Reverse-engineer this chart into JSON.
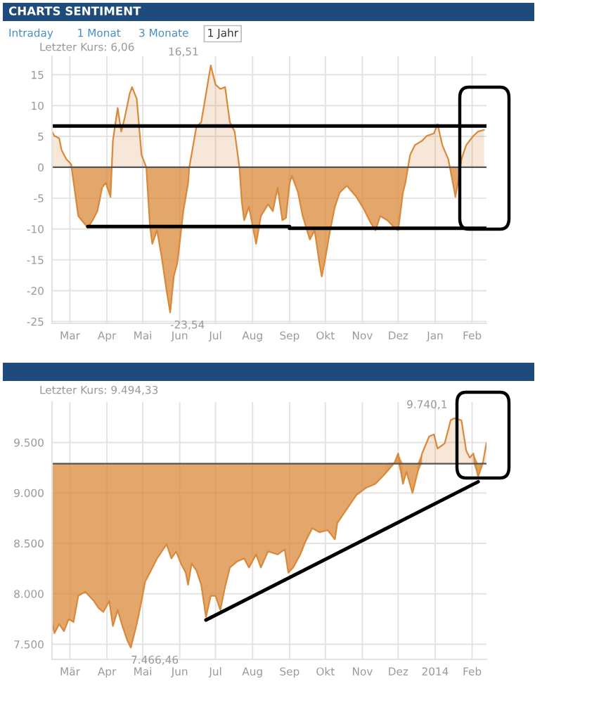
{
  "chart_data": [
    {
      "type": "area",
      "title": "CHARTS SENTIMENT",
      "annotations": [
        "Intraday",
        "1 Monat",
        "3 Monate",
        "1 Jahr",
        "Letzter Kurs: 6,06",
        {
          "text": "16,51",
          "x": "2013-06-27",
          "y": 16.51
        },
        {
          "text": "-23,54",
          "x": "2013-05-24",
          "y": -23.54
        }
      ],
      "series": [
        {
          "color": "#d9893a",
          "x": [
            "2013-02-14",
            "2013-02-16",
            "2013-02-20",
            "2013-02-22",
            "2013-02-26",
            "2013-03-02",
            "2013-03-08",
            "2013-03-16",
            "2013-03-20",
            "2013-03-24",
            "2013-03-28",
            "2013-03-31",
            "2013-04-04",
            "2013-04-06",
            "2013-04-10",
            "2013-04-13",
            "2013-04-16",
            "2013-04-20",
            "2013-04-22",
            "2013-04-26",
            "2013-04-30",
            "2013-05-04",
            "2013-05-07",
            "2013-05-09",
            "2013-05-13",
            "2013-05-17",
            "2013-05-21",
            "2013-05-24",
            "2013-05-27",
            "2013-05-30",
            "2013-06-04",
            "2013-06-08",
            "2013-06-09",
            "2013-06-15",
            "2013-06-19",
            "2013-06-23",
            "2013-06-27",
            "2013-07-01",
            "2013-07-05",
            "2013-07-09",
            "2013-07-13",
            "2013-07-17",
            "2013-07-21",
            "2013-07-23",
            "2013-07-25",
            "2013-07-29",
            "2013-08-04",
            "2013-08-08",
            "2013-08-14",
            "2013-08-18",
            "2013-08-22",
            "2013-08-26",
            "2013-08-29",
            "2013-09-01",
            "2013-09-03",
            "2013-09-08",
            "2013-09-12",
            "2013-09-18",
            "2013-09-22",
            "2013-09-26",
            "2013-09-28",
            "2013-10-01",
            "2013-10-05",
            "2013-10-09",
            "2013-10-13",
            "2013-10-19",
            "2013-10-27",
            "2013-11-02",
            "2013-11-08",
            "2013-11-12",
            "2013-11-16",
            "2013-11-22",
            "2013-11-28",
            "2013-12-01",
            "2013-12-05",
            "2013-12-07",
            "2013-12-11",
            "2013-12-15",
            "2013-12-21",
            "2013-12-25",
            "2013-12-31",
            "2014-01-03",
            "2014-01-07",
            "2014-01-12",
            "2014-01-15",
            "2014-01-18",
            "2014-01-20",
            "2014-01-23",
            "2014-01-27",
            "2014-02-02",
            "2014-02-06",
            "2014-02-11"
          ],
          "values": [
            5.8,
            5.1,
            4.7,
            2.8,
            1.3,
            0.5,
            -7.9,
            -9.8,
            -8.6,
            -7.1,
            -3.3,
            -2.5,
            -4.8,
            4.3,
            9.6,
            5.8,
            8.1,
            11.9,
            13,
            11.1,
            2,
            0,
            -9.4,
            -12.4,
            -10.2,
            -14.7,
            -20,
            -23.54,
            -17.7,
            -15.5,
            -7.1,
            -2.6,
            0,
            6.6,
            7.3,
            11.9,
            16.51,
            13.4,
            12.7,
            13,
            7.3,
            5.8,
            0,
            -5.6,
            -8.6,
            -6.4,
            -12.4,
            -7.9,
            -6,
            -7.1,
            -3.3,
            -8.6,
            -8.2,
            -2.6,
            -1.4,
            -4,
            -7.9,
            -11.7,
            -10.2,
            -15.5,
            -17.7,
            -14.7,
            -10.2,
            -6.4,
            -4.1,
            -3,
            -4.8,
            -6.7,
            -9,
            -10.2,
            -7.9,
            -8.6,
            -9.8,
            -10.2,
            -4.1,
            -2.6,
            2,
            3.6,
            4.3,
            5.1,
            5.5,
            7,
            3.6,
            1.3,
            -1.7,
            -4.8,
            -2.6,
            1.3,
            3.6,
            5.1,
            5.8,
            6.06
          ]
        },
        {
          "type": "line",
          "color": "#000000",
          "x": [
            "2013-02-14",
            "2014-02-13"
          ],
          "values": [
            6.7,
            6.7
          ]
        },
        {
          "type": "line",
          "color": "#000000",
          "x": [
            "2013-03-16",
            "2013-09-01",
            "2013-09-01",
            "2014-02-13"
          ],
          "values": [
            -9.6,
            -9.6,
            -9.9,
            -9.9
          ]
        }
      ],
      "ref_lines": [
        {
          "axis": "y",
          "value": 0,
          "color": "#555555"
        }
      ],
      "xlim": [
        "2013-02-14",
        "2014-02-13"
      ],
      "xticks": [
        {
          "value": "2013-03-01",
          "label": "Mar"
        },
        {
          "value": "2013-04-01",
          "label": "Apr"
        },
        {
          "value": "2013-05-01",
          "label": "Mai"
        },
        {
          "value": "2013-06-01",
          "label": "Jun"
        },
        {
          "value": "2013-07-01",
          "label": "Jul"
        },
        {
          "value": "2013-08-01",
          "label": "Aug"
        },
        {
          "value": "2013-09-01",
          "label": "Sep"
        },
        {
          "value": "2013-10-01",
          "label": "Okt"
        },
        {
          "value": "2013-11-01",
          "label": "Nov"
        },
        {
          "value": "2013-12-01",
          "label": "Dez"
        },
        {
          "value": "2014-01-01",
          "label": "Jan"
        },
        {
          "value": "2014-02-01",
          "label": "Feb"
        }
      ],
      "ylim": [
        -25.3,
        18
      ],
      "yticks": [
        -25,
        -20,
        -15,
        -10,
        -5,
        0,
        5,
        10,
        15
      ],
      "grid": true,
      "legend": false
    },
    {
      "type": "line",
      "annotations": [
        "Letzter Kurs: 9.494,33",
        {
          "text": "9.740,1",
          "x": "2014-01-17",
          "y": 9740
        },
        {
          "text": "7.466,46",
          "x": "2013-04-21",
          "y": 7466.46
        }
      ],
      "series": [
        {
          "color": "#d9893a",
          "x": [
            "2013-02-14",
            "2013-02-16",
            "2013-02-20",
            "2013-02-24",
            "2013-02-28",
            "2013-03-04",
            "2013-03-08",
            "2013-03-14",
            "2013-03-17",
            "2013-03-21",
            "2013-03-25",
            "2013-03-29",
            "2013-04-03",
            "2013-04-06",
            "2013-04-10",
            "2013-04-14",
            "2013-04-18",
            "2013-04-21",
            "2013-04-26",
            "2013-04-30",
            "2013-05-03",
            "2013-05-07",
            "2013-05-13",
            "2013-05-21",
            "2013-05-25",
            "2013-05-29",
            "2013-06-02",
            "2013-06-06",
            "2013-06-08",
            "2013-06-11",
            "2013-06-15",
            "2013-06-19",
            "2013-06-23",
            "2013-06-27",
            "2013-07-01",
            "2013-07-05",
            "2013-07-09",
            "2013-07-13",
            "2013-07-19",
            "2013-07-25",
            "2013-07-29",
            "2013-08-04",
            "2013-08-08",
            "2013-08-14",
            "2013-08-22",
            "2013-08-28",
            "2013-08-31",
            "2013-09-04",
            "2013-09-10",
            "2013-09-14",
            "2013-09-20",
            "2013-09-26",
            "2013-10-03",
            "2013-10-09",
            "2013-10-11",
            "2013-10-19",
            "2013-10-27",
            "2013-11-04",
            "2013-11-12",
            "2013-11-20",
            "2013-11-28",
            "2013-12-01",
            "2013-12-05",
            "2013-12-08",
            "2013-12-13",
            "2013-12-17",
            "2013-12-21",
            "2013-12-27",
            "2013-12-31",
            "2014-01-03",
            "2014-01-09",
            "2014-01-14",
            "2014-01-17",
            "2014-01-23",
            "2014-01-27",
            "2014-01-30",
            "2014-02-02",
            "2014-02-06",
            "2014-02-10",
            "2014-02-13"
          ],
          "values": [
            7720,
            7610,
            7700,
            7630,
            7750,
            7720,
            7980,
            8020,
            7980,
            7930,
            7860,
            7820,
            7930,
            7680,
            7840,
            7680,
            7540,
            7466.46,
            7700,
            7930,
            8120,
            8210,
            8350,
            8490,
            8350,
            8420,
            8300,
            8210,
            8090,
            8300,
            8230,
            8090,
            7770,
            7980,
            7980,
            7840,
            8070,
            8260,
            8320,
            8350,
            8260,
            8390,
            8260,
            8420,
            8390,
            8440,
            8210,
            8260,
            8390,
            8510,
            8650,
            8610,
            8630,
            8540,
            8700,
            8840,
            8980,
            9050,
            9090,
            9190,
            9300,
            9390,
            9090,
            9210,
            9000,
            9190,
            9390,
            9560,
            9580,
            9440,
            9490,
            9720,
            9740,
            9720,
            9420,
            9350,
            9390,
            9160,
            9300,
            9494.33
          ],
          "lower": [
            7720,
            7610,
            7700,
            7630,
            7750,
            7720,
            7980,
            8020,
            7980,
            7930,
            7860,
            7820,
            7930,
            7680,
            7840,
            7680,
            7540,
            7466.46,
            7700,
            7930,
            8120,
            8210,
            8350,
            8490,
            8350,
            8420,
            8300,
            8210,
            8090,
            8300,
            8230,
            8090,
            7770,
            7980,
            7980,
            7840,
            8070,
            8260,
            8320,
            8350,
            8260,
            8390,
            8260,
            8420,
            8390,
            8440,
            8210,
            8260,
            8390,
            8510,
            8650,
            8610,
            8630,
            8540,
            8700,
            8840,
            8980,
            9050,
            9090,
            9190,
            9290,
            9290,
            9090,
            9210,
            9000,
            9190,
            9290,
            9290,
            9290,
            9290,
            9290,
            9290,
            9290,
            9290,
            9290,
            9290,
            9290,
            9160,
            9290,
            9290
          ],
          "upper": [
            9290,
            9290,
            9290,
            9290,
            9290,
            9290,
            9290,
            9290,
            9290,
            9290,
            9290,
            9290,
            9290,
            9290,
            9290,
            9290,
            9290,
            9290,
            9290,
            9290,
            9290,
            9290,
            9290,
            9290,
            9290,
            9290,
            9290,
            9290,
            9290,
            9290,
            9290,
            9290,
            9290,
            9290,
            9290,
            9290,
            9290,
            9290,
            9290,
            9290,
            9290,
            9290,
            9290,
            9290,
            9290,
            9290,
            9290,
            9290,
            9290,
            9290,
            9290,
            9290,
            9290,
            9290,
            9290,
            9290,
            9290,
            9290,
            9290,
            9290,
            9300,
            9390,
            9290,
            9290,
            9290,
            9290,
            9390,
            9560,
            9580,
            9440,
            9490,
            9720,
            9740,
            9720,
            9420,
            9350,
            9390,
            9290,
            9300,
            9494.33
          ]
        },
        {
          "type": "line",
          "color": "#000000",
          "x": [
            "2013-06-23",
            "2014-02-06"
          ],
          "values": [
            7740,
            9110
          ]
        }
      ],
      "ref_lines": [
        {
          "axis": "y",
          "value": 9290,
          "color": "#555555"
        }
      ],
      "xlim": [
        "2013-02-14",
        "2014-02-13"
      ],
      "xticks": [
        {
          "value": "2013-03-01",
          "label": "Mär"
        },
        {
          "value": "2013-04-01",
          "label": "Apr"
        },
        {
          "value": "2013-05-01",
          "label": "Mai"
        },
        {
          "value": "2013-06-01",
          "label": "Jun"
        },
        {
          "value": "2013-07-01",
          "label": "Jul"
        },
        {
          "value": "2013-08-01",
          "label": "Aug"
        },
        {
          "value": "2013-09-01",
          "label": "Sep"
        },
        {
          "value": "2013-10-01",
          "label": "Okt"
        },
        {
          "value": "2013-11-01",
          "label": "Nov"
        },
        {
          "value": "2013-12-01",
          "label": "Dez"
        },
        {
          "value": "2014-01-01",
          "label": "2014"
        },
        {
          "value": "2014-02-01",
          "label": "Feb"
        }
      ],
      "ylim": [
        7350,
        9900
      ],
      "yticks": [
        {
          "value": 7500,
          "label": "7.500"
        },
        {
          "value": 8000,
          "label": "8.000"
        },
        {
          "value": 8500,
          "label": "8.500"
        },
        {
          "value": 9000,
          "label": "9.000"
        },
        {
          "value": 9500,
          "label": "9.500"
        }
      ],
      "grid": true,
      "legend": false
    }
  ]
}
